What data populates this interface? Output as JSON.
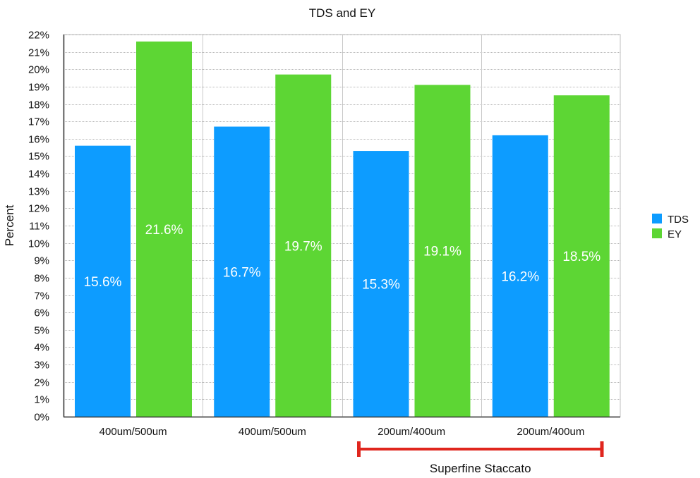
{
  "chart_data": {
    "type": "bar",
    "title": "TDS and EY",
    "xlabel": "",
    "ylabel": "Percent",
    "ylim": [
      0,
      22
    ],
    "ytick_step": 1,
    "ytick_suffix": "%",
    "grid": true,
    "legend_position": "right",
    "categories": [
      "400um/500um",
      "400um/500um",
      "200um/400um",
      "200um/400um"
    ],
    "series": [
      {
        "name": "TDS",
        "color": "#0d9cff",
        "values": [
          15.6,
          16.7,
          15.3,
          16.2
        ],
        "labels": [
          "15.6%",
          "16.7%",
          "15.3%",
          "16.2%"
        ]
      },
      {
        "name": "EY",
        "color": "#5dd634",
        "values": [
          21.6,
          19.7,
          19.1,
          18.5
        ],
        "labels": [
          "21.6%",
          "19.7%",
          "19.1%",
          "18.5%"
        ]
      }
    ],
    "annotation": {
      "text": "Superfine Staccato",
      "color": "#e0261e",
      "category_range": [
        2,
        3
      ]
    }
  }
}
